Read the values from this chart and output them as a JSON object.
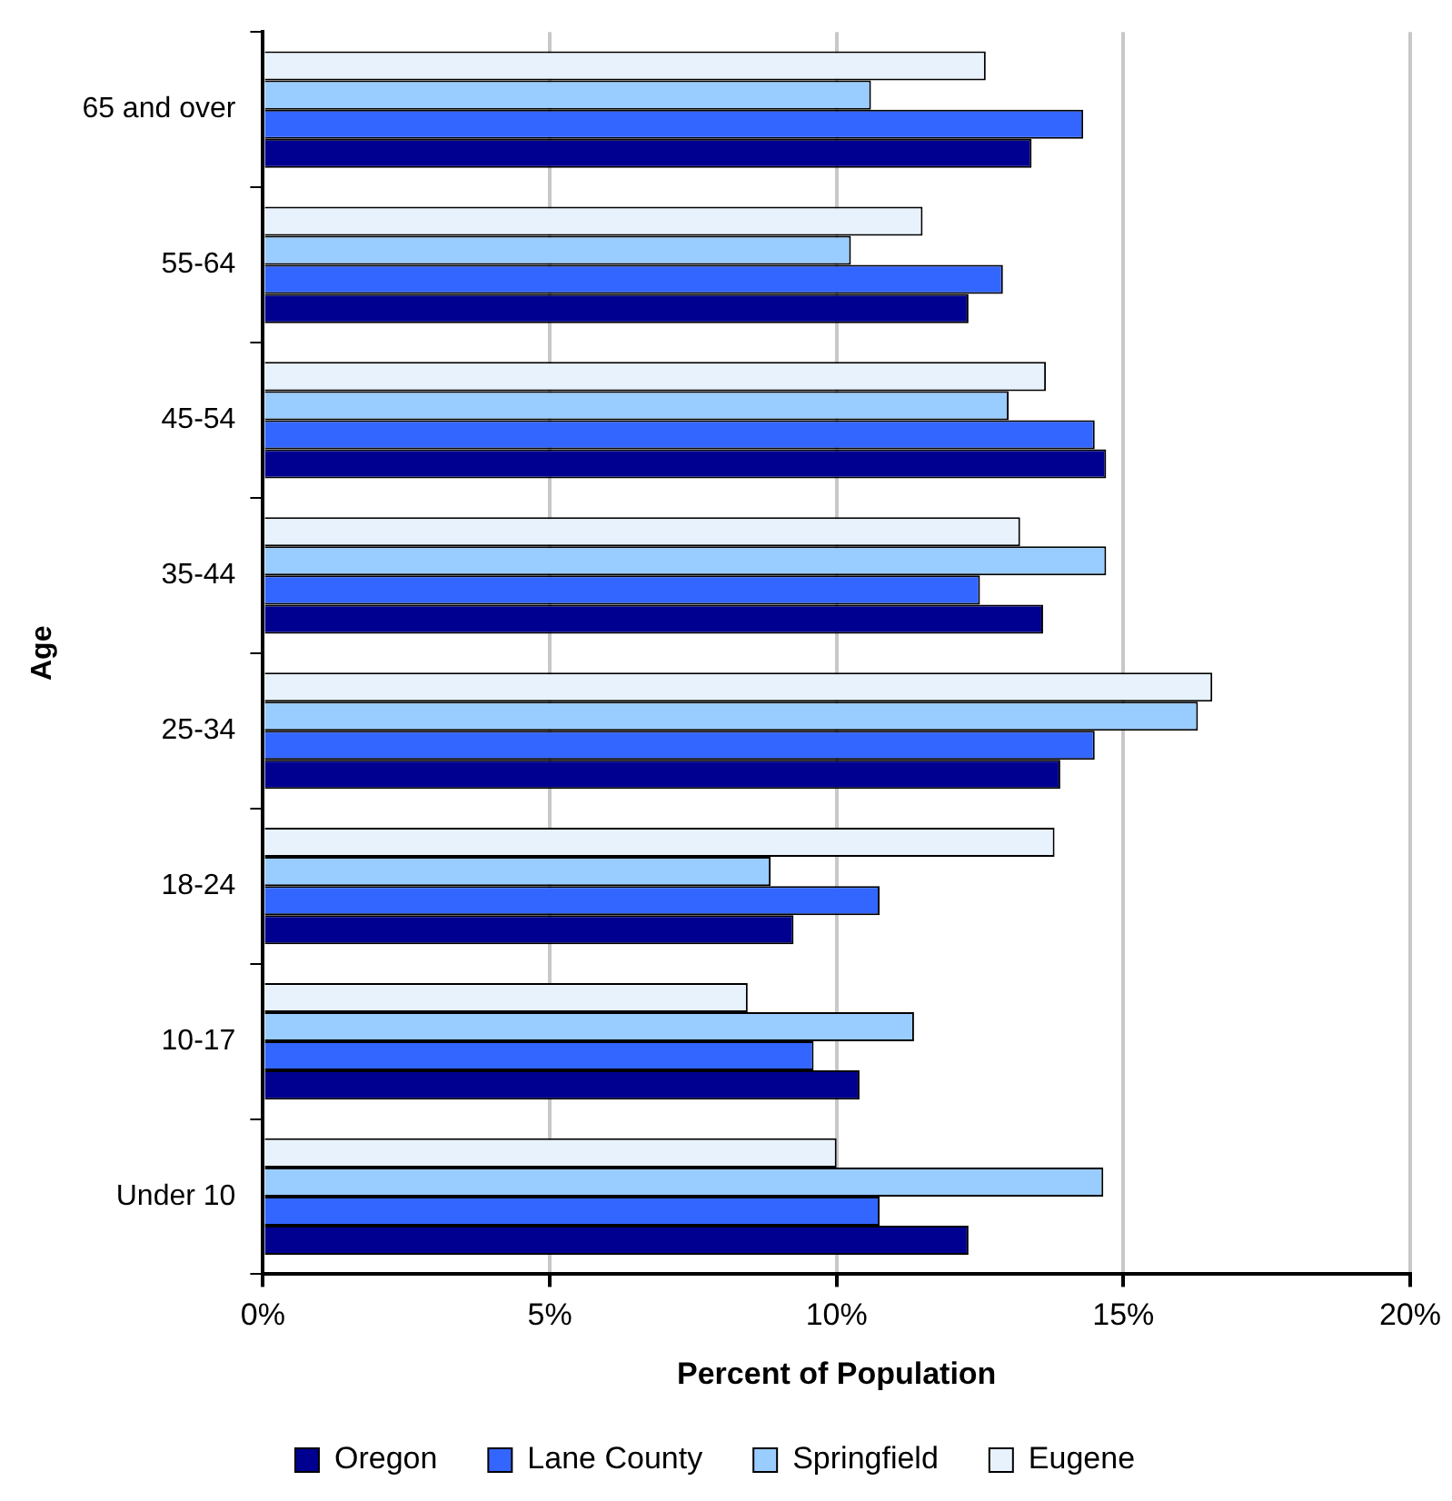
{
  "chart_data": {
    "type": "bar",
    "orientation": "horizontal",
    "xlabel": "Percent of Population",
    "ylabel": "Age",
    "categories": [
      "65 and over",
      "55-64",
      "45-54",
      "35-44",
      "25-34",
      "18-24",
      "10-17",
      "Under 10"
    ],
    "series": [
      {
        "name": "Oregon",
        "color": "#000090",
        "values": [
          13.4,
          12.3,
          14.7,
          13.6,
          13.9,
          9.25,
          10.4,
          12.3
        ]
      },
      {
        "name": "Lane County",
        "color": "#3366ff",
        "values": [
          14.3,
          12.9,
          14.5,
          12.5,
          14.5,
          10.75,
          9.6,
          10.75
        ]
      },
      {
        "name": "Springfield",
        "color": "#99ccff",
        "values": [
          10.6,
          10.25,
          13.0,
          14.7,
          16.3,
          8.85,
          11.35,
          14.65
        ]
      },
      {
        "name": "Eugene",
        "color": "#e8f2fc",
        "values": [
          12.6,
          11.5,
          13.65,
          13.2,
          16.55,
          13.8,
          8.45,
          10.0
        ]
      }
    ],
    "xlim": [
      0,
      20
    ],
    "xticks": [
      {
        "value": 0,
        "label": "0%"
      },
      {
        "value": 5,
        "label": "5%"
      },
      {
        "value": 10,
        "label": "10%"
      },
      {
        "value": 15,
        "label": "15%"
      },
      {
        "value": 20,
        "label": "20%"
      }
    ],
    "grid": "x",
    "legend": "bottom"
  }
}
